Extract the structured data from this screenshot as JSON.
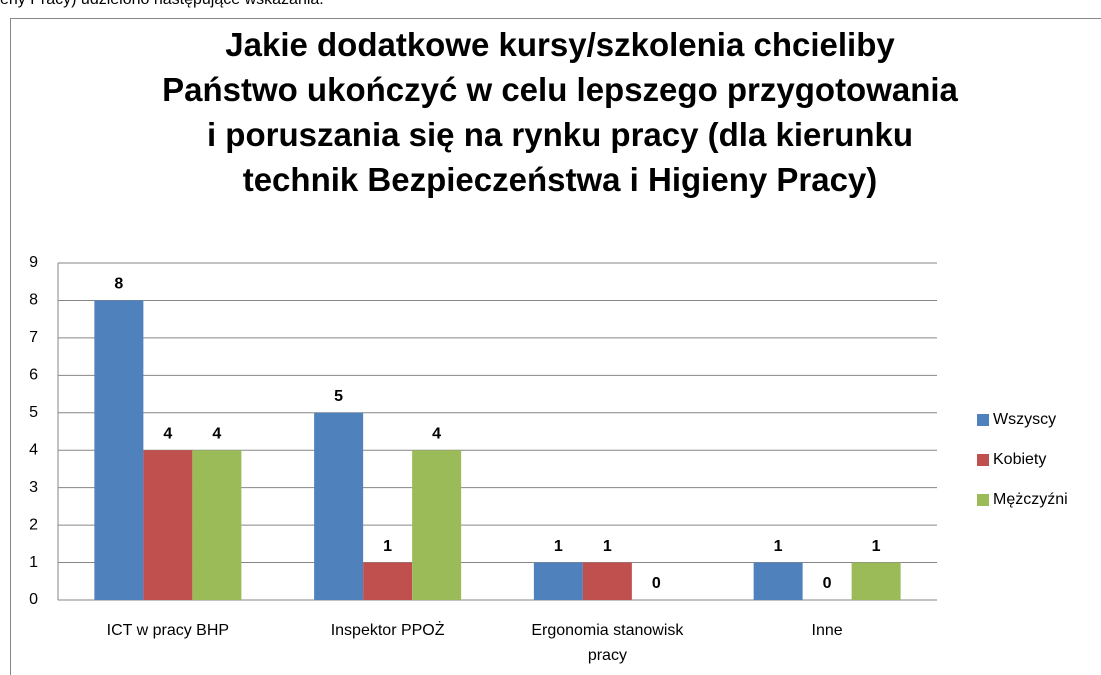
{
  "page_text": "eny Pracy) udzielono następujące wskazania.",
  "chart_data": {
    "type": "bar",
    "title": "Jakie dodatkowe kursy/szkolenia chcieliby\nPaństwo ukończyć w celu lepszego przygotowania\ni poruszania się na rynku pracy (dla kierunku\ntechnik Bezpieczeństwa i Higieny Pracy)",
    "categories": [
      "ICT w pracy BHP",
      "Inspektor PPOŻ",
      "Ergonomia stanowisk pracy",
      "Inne"
    ],
    "series": [
      {
        "name": "Wszyscy",
        "color": "#4f81bd",
        "values": [
          8,
          5,
          1,
          1
        ]
      },
      {
        "name": "Kobiety",
        "color": "#c0504d",
        "values": [
          4,
          1,
          1,
          0
        ]
      },
      {
        "name": "Mężczyźni",
        "color": "#9bbb59",
        "values": [
          4,
          4,
          0,
          1
        ]
      }
    ],
    "ylim": [
      0,
      9
    ],
    "yticks": [
      0,
      1,
      2,
      3,
      4,
      5,
      6,
      7,
      8,
      9
    ],
    "grid": true,
    "legend": "right"
  }
}
